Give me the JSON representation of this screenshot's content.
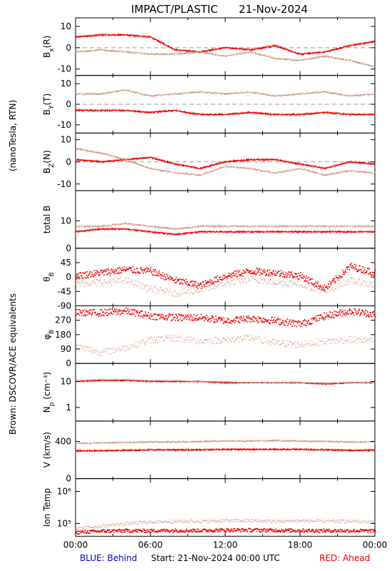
{
  "title": "IMPACT/PLASTIC",
  "date": "21-Nov-2024",
  "left_label_units": "(nanoTesla, RTN)",
  "left_label_brown": "Brown: DSCOVR/ACE equivalents",
  "colors": {
    "red": "#ee0000",
    "brown": "#c8907a",
    "blue": "#0000cc",
    "zero_line": "#999999"
  },
  "x_ticks": [
    "00:00",
    "06:00",
    "12:00",
    "18:00",
    "00:00"
  ],
  "footer": {
    "blue": "BLUE: Behind",
    "start": "Start: 21-Nov-2024 00:00 UTC",
    "red": "RED: Ahead"
  },
  "chart_data": [
    {
      "type": "line",
      "ylabel": "B_x(R)",
      "y_label_html": [
        "B",
        "x",
        "(R)"
      ],
      "ylim": [
        -13,
        14
      ],
      "y_ticks": [
        {
          "v": 10,
          "t": "10"
        },
        {
          "v": 0,
          "t": "0"
        },
        {
          "v": -10,
          "t": "-10"
        }
      ],
      "zero_line": true,
      "x_hours": [
        0,
        2,
        4,
        6,
        8,
        10,
        12,
        14,
        16,
        18,
        20,
        22,
        24
      ],
      "series": [
        {
          "color": "red",
          "values": [
            5,
            6,
            6,
            5,
            -1,
            -2,
            0,
            -1,
            1,
            -3,
            -2,
            1,
            3
          ]
        },
        {
          "color": "brown",
          "values": [
            -2,
            -1,
            -2,
            -3,
            -3,
            -2,
            -4,
            -2,
            -5,
            -6,
            -4,
            -6,
            -9
          ]
        }
      ]
    },
    {
      "type": "line",
      "ylabel": "B_y(T)",
      "y_label_html": [
        "B",
        "Y",
        "(T)"
      ],
      "ylim": [
        -14,
        14
      ],
      "y_ticks": [
        {
          "v": 10,
          "t": "10"
        },
        {
          "v": 0,
          "t": "0"
        },
        {
          "v": -10,
          "t": "-10"
        }
      ],
      "zero_line": true,
      "x_hours": [
        0,
        2,
        4,
        6,
        8,
        10,
        12,
        14,
        16,
        18,
        20,
        22,
        24
      ],
      "series": [
        {
          "color": "red",
          "values": [
            -3,
            -3,
            -3,
            -4,
            -3,
            -5,
            -5,
            -4,
            -5,
            -5,
            -4,
            -5,
            -5
          ]
        },
        {
          "color": "brown",
          "values": [
            5,
            5,
            7,
            4,
            5,
            6,
            5,
            6,
            4,
            5,
            6,
            4,
            5
          ]
        }
      ]
    },
    {
      "type": "line",
      "ylabel": "B_z(N)",
      "y_label_html": [
        "B",
        "Z",
        "(N)"
      ],
      "ylim": [
        -13,
        13
      ],
      "y_ticks": [
        {
          "v": 10,
          "t": "10"
        },
        {
          "v": 0,
          "t": "0"
        },
        {
          "v": -10,
          "t": "-10"
        }
      ],
      "zero_line": true,
      "x_hours": [
        0,
        2,
        4,
        6,
        8,
        10,
        12,
        14,
        16,
        18,
        20,
        22,
        24
      ],
      "series": [
        {
          "color": "red",
          "values": [
            1,
            0,
            1,
            2,
            -1,
            -3,
            0,
            1,
            1,
            -1,
            -3,
            0,
            -1
          ]
        },
        {
          "color": "brown",
          "values": [
            6,
            4,
            1,
            -3,
            -5,
            -6,
            -2,
            -3,
            -5,
            -3,
            -6,
            -4,
            -5
          ]
        }
      ]
    },
    {
      "type": "line",
      "ylabel": "total B",
      "y_label_html": [
        "total B",
        "",
        ""
      ],
      "ylim": [
        0,
        21
      ],
      "y_ticks": [
        {
          "v": 10,
          "t": "10"
        },
        {
          "v": 0,
          "t": "0"
        }
      ],
      "zero_line": false,
      "x_hours": [
        0,
        2,
        4,
        6,
        8,
        10,
        12,
        14,
        16,
        18,
        20,
        22,
        24
      ],
      "series": [
        {
          "color": "red",
          "values": [
            6,
            7,
            7,
            6,
            5,
            6,
            6,
            6,
            6,
            6,
            6,
            6,
            6
          ]
        },
        {
          "color": "brown",
          "values": [
            8,
            8,
            9,
            8,
            7,
            8,
            8,
            8,
            8,
            8,
            8,
            8,
            8
          ]
        }
      ]
    },
    {
      "type": "scatter",
      "ylabel": "theta_B",
      "y_label_html": [
        "θ",
        "B",
        ""
      ],
      "ylim": [
        -90,
        90
      ],
      "y_ticks": [
        {
          "v": 45,
          "t": "45"
        },
        {
          "v": 0,
          "t": "0"
        },
        {
          "v": -45,
          "t": "-45"
        },
        {
          "v": -90,
          "t": "-90"
        }
      ],
      "zero_line": false,
      "x_hours": [
        0,
        2,
        4,
        6,
        8,
        10,
        12,
        14,
        16,
        18,
        20,
        22,
        24
      ],
      "series": [
        {
          "color": "red",
          "values": [
            5,
            15,
            25,
            20,
            -10,
            -25,
            5,
            20,
            15,
            5,
            -35,
            35,
            15
          ]
        },
        {
          "color": "brown",
          "values": [
            -20,
            -15,
            -10,
            -35,
            -50,
            -40,
            -20,
            -5,
            -15,
            -20,
            -45,
            -10,
            -25
          ]
        }
      ]
    },
    {
      "type": "scatter",
      "ylabel": "phi_B",
      "y_label_html": [
        "φ",
        "B",
        ""
      ],
      "ylim": [
        0,
        360
      ],
      "y_ticks": [
        {
          "v": 270,
          "t": "270"
        },
        {
          "v": 180,
          "t": "180"
        },
        {
          "v": 90,
          "t": "90"
        },
        {
          "v": 0,
          "t": "0"
        }
      ],
      "zero_line": false,
      "x_hours": [
        0,
        2,
        4,
        6,
        8,
        10,
        12,
        14,
        16,
        18,
        20,
        22,
        24
      ],
      "series": [
        {
          "color": "red",
          "values": [
            320,
            320,
            330,
            300,
            290,
            290,
            270,
            285,
            270,
            250,
            300,
            330,
            310
          ]
        },
        {
          "color": "brown",
          "values": [
            110,
            70,
            100,
            150,
            160,
            140,
            150,
            160,
            130,
            120,
            140,
            150,
            140
          ]
        }
      ]
    },
    {
      "type": "line",
      "ylabel": "N_p (cm^-3)",
      "y_label_html": [
        "N",
        "p",
        " (cm⁻³)"
      ],
      "yscale": "log",
      "ylim": [
        0.3,
        50
      ],
      "y_ticks": [
        {
          "v": 10,
          "t": "10"
        },
        {
          "v": 1,
          "t": "1"
        }
      ],
      "zero_line": false,
      "x_hours": [
        0,
        2,
        4,
        6,
        8,
        10,
        12,
        14,
        16,
        18,
        20,
        22,
        24
      ],
      "series": [
        {
          "color": "red",
          "values": [
            10,
            11,
            11,
            10,
            10,
            10,
            9,
            9,
            9,
            9,
            8,
            9,
            9
          ]
        },
        {
          "color": "brown",
          "values": [
            11,
            12,
            12,
            11,
            11,
            10,
            10,
            9,
            9,
            9,
            9,
            9,
            9
          ]
        }
      ]
    },
    {
      "type": "line",
      "ylabel": "V (km/s)",
      "y_label_html": [
        "V (km/s)",
        "",
        ""
      ],
      "ylim": [
        0,
        620
      ],
      "y_ticks": [
        {
          "v": 400,
          "t": "400"
        },
        {
          "v": 0,
          "t": "0"
        }
      ],
      "zero_line": false,
      "x_hours": [
        0,
        2,
        4,
        6,
        8,
        10,
        12,
        14,
        16,
        18,
        20,
        22,
        24
      ],
      "series": [
        {
          "color": "red",
          "values": [
            300,
            300,
            305,
            310,
            310,
            310,
            315,
            315,
            315,
            315,
            310,
            305,
            305
          ]
        },
        {
          "color": "brown",
          "values": [
            380,
            385,
            390,
            395,
            395,
            400,
            405,
            405,
            410,
            405,
            400,
            395,
            395
          ]
        }
      ]
    },
    {
      "type": "scatter",
      "ylabel": "Ion Temp",
      "y_label_html": [
        "Ion Temp",
        "",
        ""
      ],
      "yscale": "log",
      "ylim": [
        40000,
        2500000
      ],
      "y_ticks": [
        {
          "v": 1000000,
          "t": "10⁶"
        },
        {
          "v": 100000,
          "t": "10⁵"
        }
      ],
      "zero_line": false,
      "x_hours": [
        0,
        2,
        4,
        6,
        8,
        10,
        12,
        14,
        16,
        18,
        20,
        22,
        24
      ],
      "series": [
        {
          "color": "red",
          "values": [
            55000,
            60000,
            62000,
            62000,
            63000,
            63000,
            65000,
            65000,
            64000,
            63000,
            62000,
            62000,
            61000
          ]
        },
        {
          "color": "brown",
          "values": [
            70000,
            85000,
            100000,
            115000,
            120000,
            120000,
            125000,
            125000,
            120000,
            125000,
            120000,
            120000,
            115000
          ]
        }
      ]
    }
  ]
}
